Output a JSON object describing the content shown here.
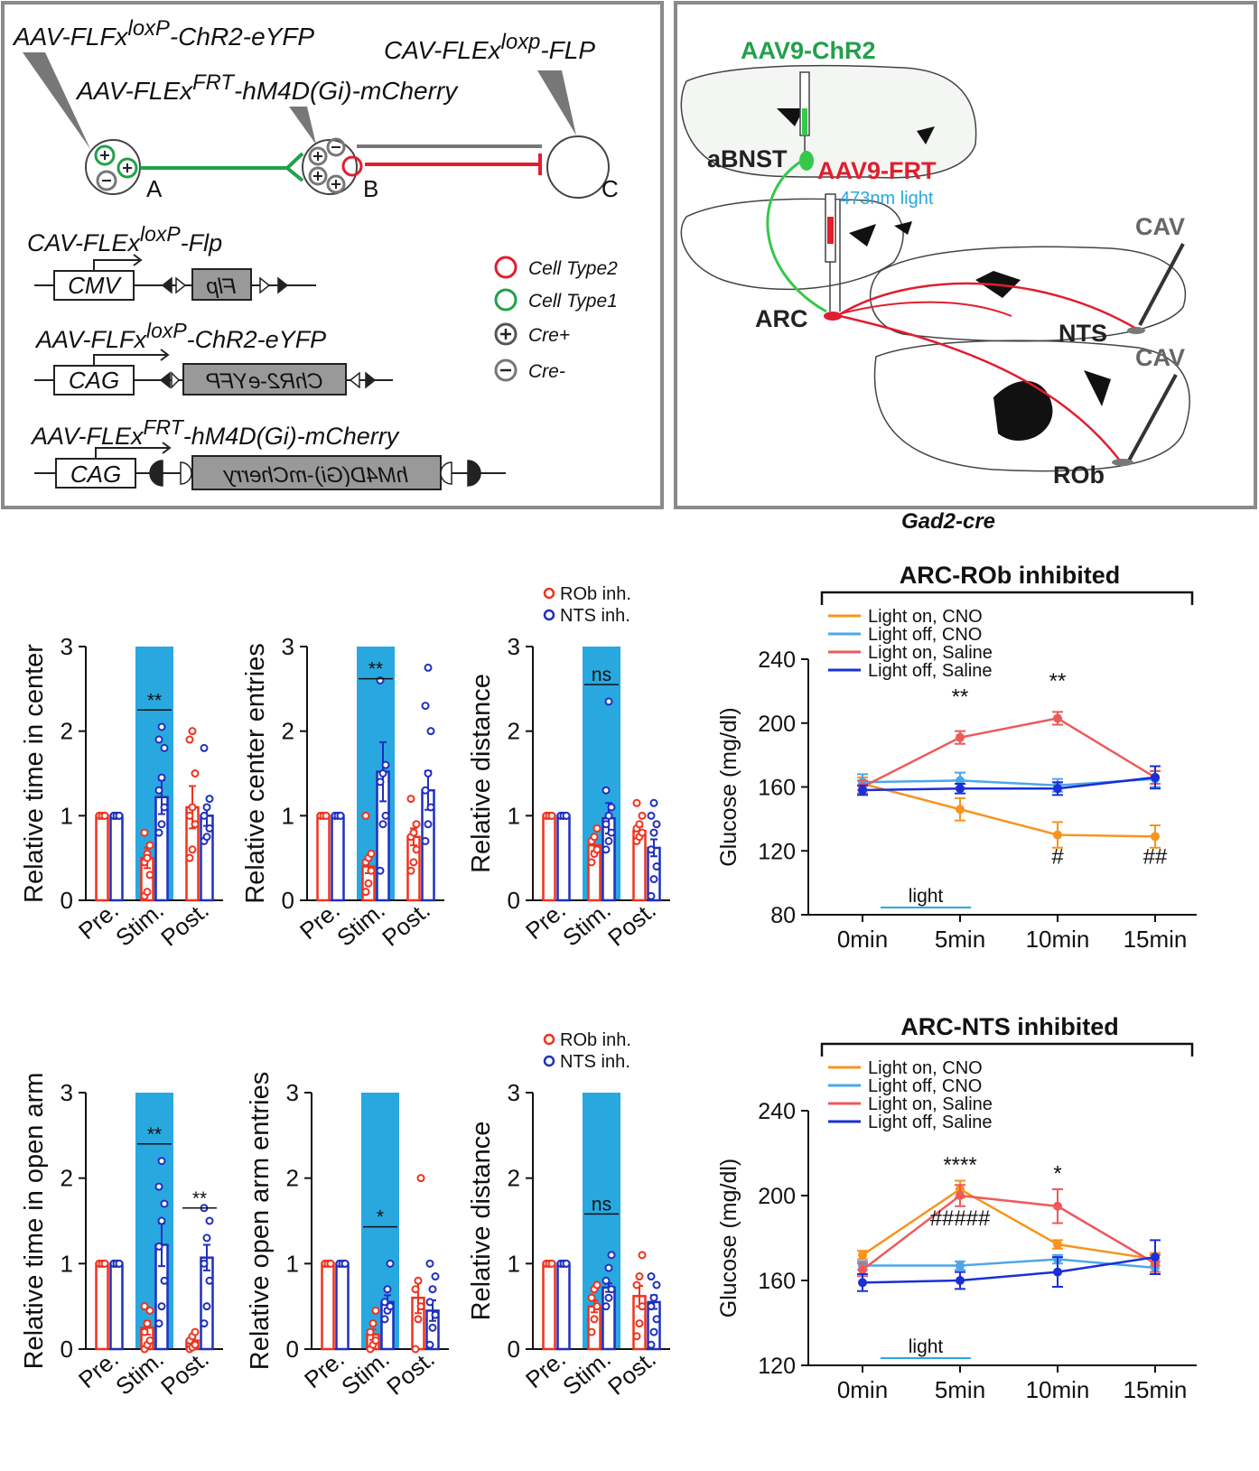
{
  "diagram_left": {
    "vectors": [
      {
        "pre": "AAV-FLFx",
        "sup": "loxP",
        "post": "-ChR2-eYFP"
      },
      {
        "pre": "CAV-FLEx",
        "sup": "loxp",
        "post": "-FLP"
      },
      {
        "pre": "AAV-FLEx",
        "sup": "FRT",
        "post": "-hM4D(Gi)-mCherry"
      }
    ],
    "cells": [
      "A",
      "B",
      "C"
    ],
    "constructs": [
      {
        "name": {
          "pre": "CAV-FLEx",
          "sup": "loxP",
          "post": "-Flp"
        },
        "promoter": "CMV",
        "gene": "Flp"
      },
      {
        "name": {
          "pre": "AAV-FLFx",
          "sup": "loxP",
          "post": "-ChR2-eYFP"
        },
        "promoter": "CAG",
        "gene": "ChR2-eYFP"
      },
      {
        "name": {
          "pre": "AAV-FLEx",
          "sup": "FRT",
          "post": "-hM4D(Gi)-mCherry"
        },
        "promoter": "CAG",
        "gene": "hM4D(Gi)-mCherry"
      }
    ],
    "legend": [
      "Cell Type2",
      "Cell Type1",
      "Cre+",
      "Cre-"
    ]
  },
  "diagram_right": {
    "viruses": [
      "AAV9-ChR2",
      "AAV9-FRT",
      "CAV",
      "CAV"
    ],
    "light": "473nm light",
    "regions": [
      "aBNST",
      "ARC",
      "NTS",
      "ROb"
    ],
    "caption": "Gad2-cre"
  },
  "chart_data": [
    {
      "type": "bar",
      "ylabel": "Relative time in center",
      "categories": [
        "Pre.",
        "Stim.",
        "Post."
      ],
      "highlight": "Stim.",
      "highlight_color": "#29a8e0",
      "ylim": [
        0,
        3
      ],
      "yticks": [
        0,
        1,
        2,
        3
      ],
      "series": [
        {
          "color": "#f0321e",
          "values": [
            1,
            0.5,
            1.1
          ],
          "errors": [
            0,
            0.12,
            0.25
          ],
          "points": [
            [
              1,
              1,
              1,
              1,
              1,
              1
            ],
            [
              0.05,
              0.1,
              0.3,
              0.45,
              0.55,
              0.65,
              0.8,
              0.5
            ],
            [
              0.5,
              0.6,
              0.9,
              1.0,
              1.1,
              1.5,
              1.9,
              2.0
            ]
          ]
        },
        {
          "color": "#1f2fbf",
          "values": [
            1,
            1.22,
            1.0
          ],
          "errors": [
            0,
            0.2,
            0.12
          ],
          "points": [
            [
              1,
              1,
              1,
              1,
              1,
              1
            ],
            [
              0.8,
              0.9,
              1.1,
              1.3,
              1.45,
              1.8,
              1.9,
              2.05
            ],
            [
              0.7,
              0.75,
              0.85,
              1.0,
              1.1,
              1.2,
              1.8
            ]
          ]
        }
      ],
      "annotations": [
        {
          "text": "**",
          "x": "Stim.",
          "y": 2.25
        }
      ]
    },
    {
      "type": "bar",
      "ylabel": "Relative center entries",
      "categories": [
        "Pre.",
        "Stim.",
        "Post."
      ],
      "highlight": "Stim.",
      "highlight_color": "#29a8e0",
      "ylim": [
        0,
        3
      ],
      "yticks": [
        0,
        1,
        2,
        3
      ],
      "series": [
        {
          "color": "#f0321e",
          "values": [
            1,
            0.4,
            0.75
          ],
          "errors": [
            0,
            0.08,
            0.1
          ],
          "points": [
            [
              1,
              1,
              1,
              1,
              1,
              1
            ],
            [
              0.1,
              0.2,
              0.35,
              0.45,
              0.5,
              0.55,
              1.0
            ],
            [
              0.35,
              0.45,
              0.6,
              0.75,
              0.8,
              0.9,
              1.2
            ]
          ]
        },
        {
          "color": "#1f2fbf",
          "values": [
            1,
            1.52,
            1.3
          ],
          "errors": [
            0,
            0.35,
            0.23
          ],
          "points": [
            [
              1,
              1,
              1,
              1,
              1,
              1
            ],
            [
              0.35,
              0.9,
              1.0,
              1.4,
              1.5,
              1.6,
              2.6
            ],
            [
              0.7,
              0.9,
              1.1,
              1.3,
              1.5,
              2.0,
              2.3,
              2.75
            ]
          ]
        }
      ],
      "annotations": [
        {
          "text": "**",
          "x": "Stim.",
          "y": 2.62
        }
      ]
    },
    {
      "type": "bar",
      "ylabel": "Relative distance",
      "categories": [
        "Pre.",
        "Stim.",
        "Post."
      ],
      "highlight": "Stim.",
      "highlight_color": "#29a8e0",
      "ylim": [
        0,
        3
      ],
      "yticks": [
        0,
        1,
        2,
        3
      ],
      "series": [
        {
          "name": "ROb inh.",
          "color": "#f0321e",
          "values": [
            1,
            0.65,
            0.82
          ],
          "errors": [
            0,
            0.07,
            0.05
          ],
          "points": [
            [
              1,
              1,
              1,
              1,
              1,
              1
            ],
            [
              0.45,
              0.55,
              0.6,
              0.7,
              0.75,
              0.85
            ],
            [
              0.7,
              0.75,
              0.8,
              0.85,
              0.9,
              1.0,
              1.15
            ]
          ]
        },
        {
          "name": "NTS inh.",
          "color": "#1f2fbf",
          "values": [
            1,
            0.97,
            0.62
          ],
          "errors": [
            0,
            0.18,
            0.1
          ],
          "points": [
            [
              1,
              1,
              1,
              1,
              1,
              1
            ],
            [
              0.6,
              0.7,
              0.8,
              0.9,
              1.0,
              1.1,
              1.3,
              2.35
            ],
            [
              0.05,
              0.25,
              0.4,
              0.6,
              0.8,
              0.9,
              1.0,
              1.15
            ]
          ]
        }
      ],
      "annotations": [
        {
          "text": "ns",
          "x": "Stim.",
          "y": 2.55
        }
      ]
    },
    {
      "type": "bar",
      "ylabel": "Relative time in open arm",
      "categories": [
        "Pre.",
        "Stim.",
        "Post."
      ],
      "highlight": "Stim.",
      "highlight_color": "#29a8e0",
      "ylim": [
        0,
        3
      ],
      "yticks": [
        0,
        1,
        2,
        3
      ],
      "series": [
        {
          "color": "#f0321e",
          "values": [
            1,
            0.25,
            0.1
          ],
          "errors": [
            0,
            0.08,
            0.03
          ],
          "points": [
            [
              1,
              1,
              1,
              1,
              1,
              1
            ],
            [
              0,
              0.05,
              0.1,
              0.2,
              0.3,
              0.45,
              0.5
            ],
            [
              0,
              0.02,
              0.05,
              0.1,
              0.15,
              0.2
            ]
          ]
        },
        {
          "color": "#1f2fbf",
          "values": [
            1,
            1.22,
            1.07
          ],
          "errors": [
            0,
            0.25,
            0.15
          ],
          "points": [
            [
              1,
              1,
              1,
              1,
              1,
              1
            ],
            [
              0.3,
              0.5,
              0.8,
              1.2,
              1.5,
              1.7,
              1.9,
              2.2
            ],
            [
              0.3,
              0.5,
              0.8,
              1.0,
              1.3,
              1.5,
              1.65
            ]
          ]
        }
      ],
      "annotations": [
        {
          "text": "**",
          "x": "Stim.",
          "y": 2.4
        },
        {
          "text": "**",
          "x": "Post.",
          "y": 1.65
        }
      ]
    },
    {
      "type": "bar",
      "ylabel": "Relative open arm entries",
      "categories": [
        "Pre.",
        "Stim.",
        "Post."
      ],
      "highlight": "Stim.",
      "highlight_color": "#29a8e0",
      "ylim": [
        0,
        3
      ],
      "yticks": [
        0,
        1,
        2,
        3
      ],
      "series": [
        {
          "color": "#f0321e",
          "values": [
            1,
            0.17,
            0.6
          ],
          "errors": [
            0,
            0.06,
            0.18
          ],
          "points": [
            [
              1,
              1,
              1,
              1,
              1,
              1
            ],
            [
              0,
              0.05,
              0.1,
              0.2,
              0.3,
              0.45
            ],
            [
              0,
              0.35,
              0.5,
              0.7,
              0.8,
              2.0
            ]
          ]
        },
        {
          "color": "#1f2fbf",
          "values": [
            1,
            0.55,
            0.45
          ],
          "errors": [
            0,
            0.08,
            0.12
          ],
          "points": [
            [
              1,
              1,
              1,
              1,
              1,
              1
            ],
            [
              0.35,
              0.45,
              0.5,
              0.55,
              0.7,
              1.0
            ],
            [
              0.05,
              0.25,
              0.4,
              0.55,
              0.7,
              0.85,
              1.0
            ]
          ]
        }
      ],
      "annotations": [
        {
          "text": "*",
          "x": "Stim.",
          "y": 1.43
        }
      ]
    },
    {
      "type": "bar",
      "ylabel": "Relative distance",
      "categories": [
        "Pre.",
        "Stim.",
        "Post."
      ],
      "highlight": "Stim.",
      "highlight_color": "#29a8e0",
      "ylim": [
        0,
        3
      ],
      "yticks": [
        0,
        1,
        2,
        3
      ],
      "series": [
        {
          "name": "ROb inh.",
          "color": "#f0321e",
          "values": [
            1,
            0.5,
            0.62
          ],
          "errors": [
            0,
            0.07,
            0.12
          ],
          "points": [
            [
              1,
              1,
              1,
              1,
              1,
              1
            ],
            [
              0.2,
              0.35,
              0.5,
              0.6,
              0.7,
              0.75
            ],
            [
              0.15,
              0.3,
              0.5,
              0.75,
              0.85,
              1.1
            ]
          ]
        },
        {
          "name": "NTS inh.",
          "color": "#1f2fbf",
          "values": [
            1,
            0.72,
            0.55
          ],
          "errors": [
            0,
            0.05,
            0.08
          ],
          "points": [
            [
              1,
              1,
              1,
              1,
              1,
              1
            ],
            [
              0.5,
              0.6,
              0.7,
              0.8,
              0.95,
              1.1
            ],
            [
              0.05,
              0.2,
              0.35,
              0.5,
              0.6,
              0.75,
              0.85
            ]
          ]
        }
      ],
      "annotations": [
        {
          "text": "ns",
          "x": "Stim.",
          "y": 1.58
        }
      ]
    },
    {
      "type": "line",
      "title": "ARC-ROb inhibited",
      "ylabel": "Glucose (mg/dl)",
      "categories": [
        "0min",
        "5min",
        "10min",
        "15min"
      ],
      "ylim": [
        80,
        240
      ],
      "yticks": [
        80,
        120,
        160,
        200,
        240
      ],
      "light": "light",
      "series": [
        {
          "name": "Light on, CNO",
          "color": "#f7941d",
          "values": [
            162,
            146,
            130,
            129
          ],
          "errors": [
            4,
            7,
            8,
            7
          ]
        },
        {
          "name": "Light off, CNO",
          "color": "#4da6e8",
          "values": [
            163,
            164,
            161,
            165
          ],
          "errors": [
            5,
            5,
            4,
            5
          ]
        },
        {
          "name": "Light on, Saline",
          "color": "#ee5a5a",
          "values": [
            160,
            191,
            203,
            166
          ],
          "errors": [
            4,
            4,
            4,
            4
          ]
        },
        {
          "name": "Light off, Saline",
          "color": "#1a2fd6",
          "values": [
            158,
            159,
            159,
            166
          ],
          "errors": [
            3,
            3,
            4,
            7
          ]
        }
      ],
      "annotations": [
        {
          "text": "**",
          "x": "5min",
          "y": 212
        },
        {
          "text": "**",
          "x": "10min",
          "y": 222
        },
        {
          "text": "#",
          "x": "10min",
          "y": 112
        },
        {
          "text": "##",
          "x": "15min",
          "y": 112
        }
      ]
    },
    {
      "type": "line",
      "title": "ARC-NTS inhibited",
      "ylabel": "Glucose (mg/dl)",
      "categories": [
        "0min",
        "5min",
        "10min",
        "15min"
      ],
      "ylim": [
        120,
        240
      ],
      "yticks": [
        120,
        160,
        200,
        240
      ],
      "light": "light",
      "series": [
        {
          "name": "Light on, CNO",
          "color": "#f7941d",
          "values": [
            172,
            203,
            177,
            170
          ],
          "errors": [
            2,
            4,
            2,
            3
          ]
        },
        {
          "name": "Light off, CNO",
          "color": "#4da6e8",
          "values": [
            167,
            167,
            170,
            166
          ],
          "errors": [
            2,
            2,
            2,
            3
          ]
        },
        {
          "name": "Light on, Saline",
          "color": "#ee5a5a",
          "values": [
            165,
            200,
            195,
            168
          ],
          "errors": [
            3,
            5,
            8,
            4
          ]
        },
        {
          "name": "Light off, Saline",
          "color": "#1a2fd6",
          "values": [
            159,
            160,
            164,
            171
          ],
          "errors": [
            4,
            4,
            7,
            8
          ]
        }
      ],
      "annotations": [
        {
          "text": "****",
          "x": "5min",
          "y": 211
        },
        {
          "text": "*",
          "x": "10min",
          "y": 207
        },
        {
          "text": "#####",
          "x": "5min",
          "y": 186
        }
      ]
    }
  ]
}
